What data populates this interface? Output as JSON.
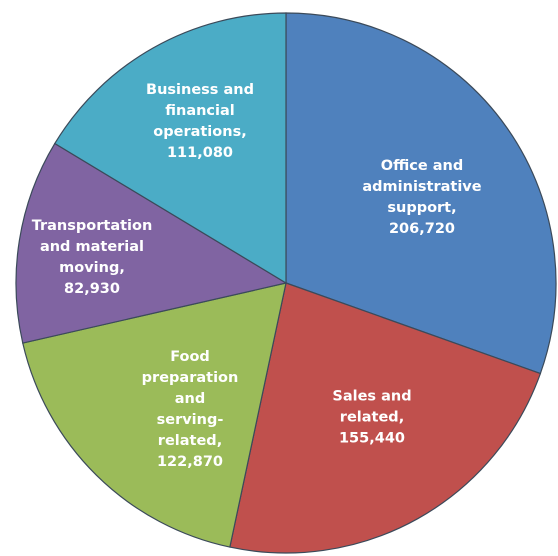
{
  "chart_data": {
    "type": "pie",
    "categories": [
      "Office and administrative support",
      "Sales and related",
      "Food preparation and serving-related",
      "Transportation and material moving",
      "Business and financial operations"
    ],
    "values": [
      206720,
      155440,
      122870,
      82930,
      111080
    ],
    "value_labels": [
      "206,720",
      "155,440",
      "122,870",
      "82,930",
      "111,080"
    ],
    "separator": ",",
    "colors": [
      "#4f81bd",
      "#c0504d",
      "#9bbb59",
      "#8064a2",
      "#4bacc6"
    ]
  }
}
